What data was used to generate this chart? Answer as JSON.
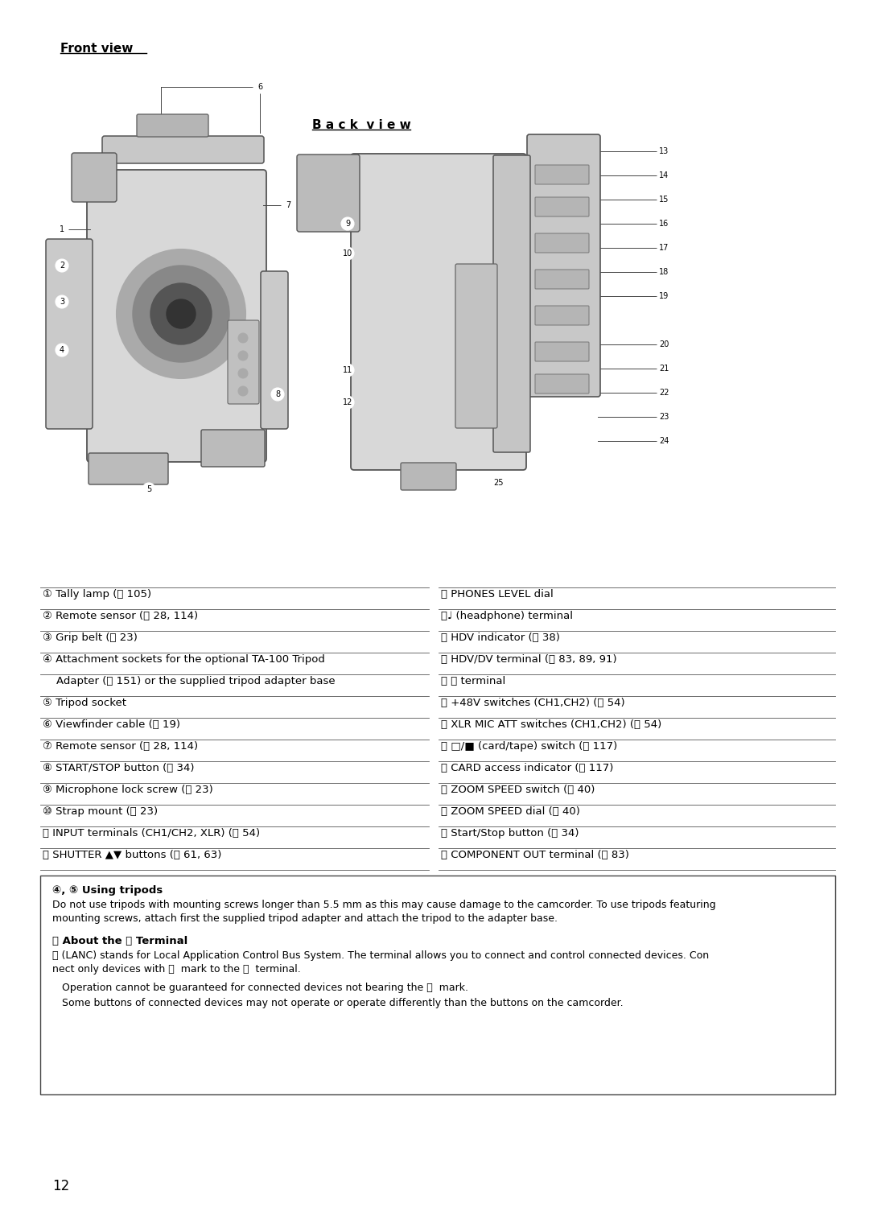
{
  "background_color": "#ffffff",
  "page_number": "12",
  "front_view_title": "Front view",
  "back_view_title": "B a c k  v i e w",
  "left_items": [
    "① Tally lamp (⧉ 105)",
    "② Remote sensor (⧉ 28, 114)",
    "③ Grip belt (⧉ 23)",
    "④ Attachment sockets for the optional TA-100 Tripod",
    "    Adapter (⧉ 151) or the supplied tripod adapter base",
    "⑤ Tripod socket",
    "⑥ Viewfinder cable (⧉ 19)",
    "⑦ Remote sensor (⧉ 28, 114)",
    "⑧ START/STOP button (⧉ 34)",
    "⑨ Microphone lock screw (⧉ 23)",
    "⑩ Strap mount (⧉ 23)",
    "⑪ INPUT terminals (CH1/CH2, XLR) (⧉ 54)",
    "⑫ SHUTTER ▲▼ buttons (⧉ 61, 63)"
  ],
  "right_items": [
    "⑬ PHONES LEVEL dial",
    "⑭♩ (headphone) terminal",
    "⑮ HDV indicator (⧉ 38)",
    "⑯ HDV/DV terminal (⧉ 83, 89, 91)",
    "⑰ ⒱ terminal",
    "⑱ +48V switches (CH1,CH2) (⧉ 54)",
    "⑲ XLR MIC ATT switches (CH1,CH2) (⧉ 54)",
    "⑳ □/■ (card/tape) switch (⧉ 117)",
    "⑴ CARD access indicator (⧉ 117)",
    "⑵ ZOOM SPEED switch (⧉ 40)",
    "⑶ ZOOM SPEED dial (⧉ 40)",
    "⑷ Start/Stop button (⧉ 34)",
    "⑸ COMPONENT OUT terminal (⧉ 83)"
  ],
  "note_title1": "④, ⑤ Using tripods",
  "note_text1a": "Do not use tripods with mounting screws longer than 5.5 mm as this may cause damage to the camcorder. To use tripods featuring",
  "note_text1b": "mounting screws, attach first the supplied tripod adapter and attach the tripod to the adapter base.",
  "note_title2": "⑰ About the ⒱ Terminal",
  "note_text2a": "⒱ (LANC) stands for Local Application Control Bus System. The terminal allows you to connect and control connected devices. Con",
  "note_text2b": "nect only devices with ⒱  mark to the ⒱  terminal.",
  "note_text2c": "   Operation cannot be guaranteed for connected devices not bearing the ⒱  mark.",
  "note_text2d": "   Some buttons of connected devices may not operate or operate differently than the buttons on the camcorder."
}
